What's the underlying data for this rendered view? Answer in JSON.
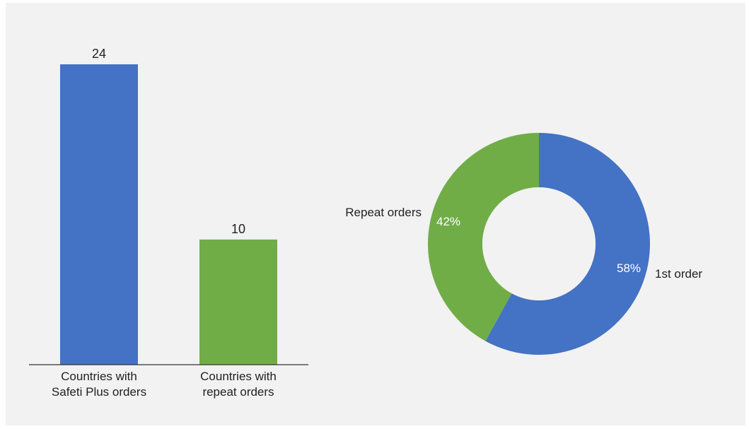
{
  "colors": {
    "background": "#f2f2f2",
    "blue": "#4472c4",
    "green": "#70ad47",
    "text": "#222222",
    "donut_label": "#ffffff",
    "axis": "#333333"
  },
  "chart_data": [
    {
      "type": "bar",
      "categories": [
        [
          "Countries with",
          "Safeti Plus orders"
        ],
        [
          "Countries with",
          "repeat orders"
        ]
      ],
      "values": [
        24,
        10
      ],
      "data_labels": [
        "24",
        "10"
      ],
      "colors": [
        "#4472c4",
        "#70ad47"
      ],
      "ylim": [
        0,
        24
      ],
      "grid": false
    },
    {
      "type": "pie",
      "donut": true,
      "slices": [
        {
          "label": "1st order",
          "value": 58,
          "value_label": "58%",
          "color": "#4472c4"
        },
        {
          "label": "Repeat orders",
          "value": 42,
          "value_label": "42%",
          "color": "#70ad47"
        }
      ]
    }
  ]
}
